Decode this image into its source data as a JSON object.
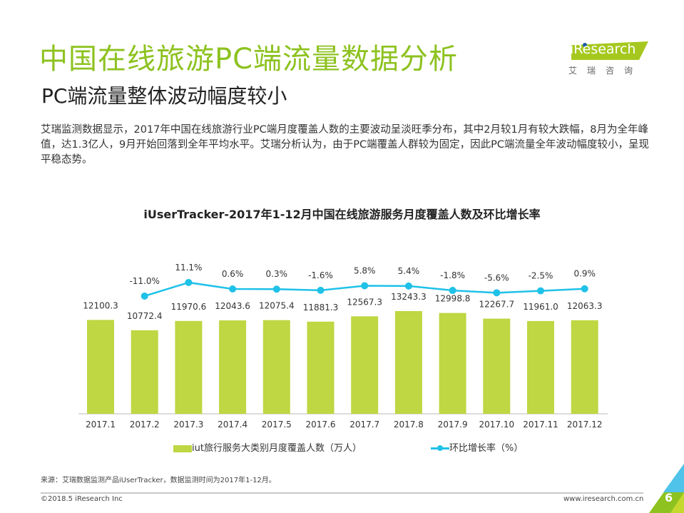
{
  "header": {
    "title": "中国在线旅游PC端流量数据分析",
    "subtitle": "PC端流量整体波动幅度较小"
  },
  "logo": {
    "text": "iResearch",
    "cn": "艾瑞咨询"
  },
  "description": "艾瑞监测数据显示，2017年中国在线旅游行业PC端月度覆盖人数的主要波动呈淡旺季分布，其中2月较1月有较大跌幅，8月为全年峰值，达1.3亿人，9月开始回落到全年平均水平。艾瑞分析认为，由于PC端覆盖人群较为固定，因此PC端流量全年波动幅度较小，呈现平稳态势。",
  "chart_data": {
    "type": "bar+line",
    "title": "iUserTracker-2017年1-12月中国在线旅游服务月度覆盖人数及环比增长率",
    "categories": [
      "2017.1",
      "2017.2",
      "2017.3",
      "2017.4",
      "2017.5",
      "2017.6",
      "2017.7",
      "2017.8",
      "2017.9",
      "2017.10",
      "2017.11",
      "2017.12"
    ],
    "series": [
      {
        "name": "iut旅行服务大类别月度覆盖人数（万人）",
        "type": "bar",
        "color": "#bed742",
        "values": [
          12100.3,
          10772.4,
          11970.6,
          12043.6,
          12075.4,
          11881.3,
          12567.3,
          13243.3,
          12998.8,
          12267.7,
          11961.0,
          12063.3
        ],
        "labels": [
          "12100.3",
          "10772.4",
          "11970.6",
          "12043.6",
          "12075.4",
          "11881.3",
          "12567.3",
          "13243.3",
          "12998.8",
          "12267.7",
          "11961.0",
          "12063.3"
        ]
      },
      {
        "name": "环比增长率（%）",
        "type": "line",
        "color": "#1fc1e8",
        "values": [
          null,
          -11.0,
          11.1,
          0.6,
          0.3,
          -1.6,
          5.8,
          5.4,
          -1.8,
          -5.6,
          -2.5,
          0.9
        ],
        "labels": [
          "",
          "-11.0%",
          "11.1%",
          "0.6%",
          "0.3%",
          "-1.6%",
          "5.8%",
          "5.4%",
          "-1.8%",
          "-5.6%",
          "-2.5%",
          "0.9%"
        ]
      }
    ],
    "legend": "bottom"
  },
  "footer": {
    "source": "来源：艾瑞数据监测产品iUserTracker，数据监测时间为2017年1-12月。",
    "copyright": "©2018.5 iResearch Inc",
    "url": "www.iresearch.com.cn",
    "page": "6"
  },
  "colors": {
    "accent": "#8dc21f",
    "bar": "#bed742",
    "line": "#1fc1e8"
  }
}
